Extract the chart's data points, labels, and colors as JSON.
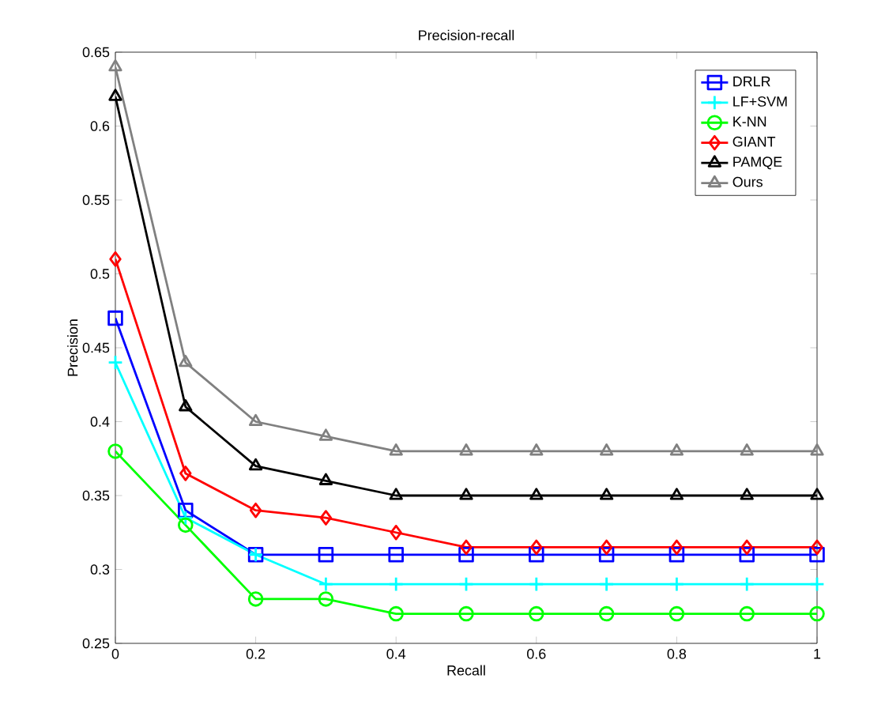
{
  "chart_data": {
    "type": "line",
    "title": "Precision-recall",
    "xlabel": "Recall",
    "ylabel": "Precision",
    "x": [
      0,
      0.1,
      0.2,
      0.3,
      0.4,
      0.5,
      0.6,
      0.7,
      0.8,
      0.9,
      1
    ],
    "series": [
      {
        "name": "DRLR",
        "color": "#0000ff",
        "marker": "square",
        "values": [
          0.47,
          0.34,
          0.31,
          0.31,
          0.31,
          0.31,
          0.31,
          0.31,
          0.31,
          0.31,
          0.31
        ]
      },
      {
        "name": "LF+SVM",
        "color": "#00ffff",
        "marker": "cross",
        "values": [
          0.44,
          0.335,
          0.31,
          0.29,
          0.29,
          0.29,
          0.29,
          0.29,
          0.29,
          0.29,
          0.29
        ]
      },
      {
        "name": "K-NN",
        "color": "#00ff00",
        "marker": "circle",
        "values": [
          0.38,
          0.33,
          0.28,
          0.28,
          0.27,
          0.27,
          0.27,
          0.27,
          0.27,
          0.27,
          0.27
        ]
      },
      {
        "name": "GIANT",
        "color": "#ff0000",
        "marker": "diamond",
        "values": [
          0.51,
          0.365,
          0.34,
          0.335,
          0.325,
          0.315,
          0.315,
          0.315,
          0.315,
          0.315,
          0.315
        ]
      },
      {
        "name": "PAMQE",
        "color": "#000000",
        "marker": "triangle",
        "values": [
          0.62,
          0.41,
          0.37,
          0.36,
          0.35,
          0.35,
          0.35,
          0.35,
          0.35,
          0.35,
          0.35
        ]
      },
      {
        "name": "Ours",
        "color": "#808080",
        "marker": "triangle",
        "values": [
          0.64,
          0.44,
          0.4,
          0.39,
          0.38,
          0.38,
          0.38,
          0.38,
          0.38,
          0.38,
          0.38
        ]
      }
    ],
    "xlim": [
      0,
      1
    ],
    "xticks": [
      0,
      0.2,
      0.4,
      0.6,
      0.8,
      1
    ],
    "ylim": [
      0.25,
      0.65
    ],
    "yticks": [
      0.25,
      0.3,
      0.35,
      0.4,
      0.45,
      0.5,
      0.55,
      0.6,
      0.65
    ],
    "grid": false,
    "legend": "top right",
    "line_style": "solid"
  }
}
